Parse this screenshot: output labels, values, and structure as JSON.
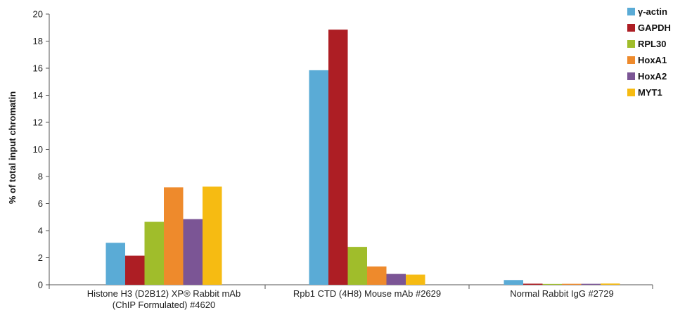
{
  "chart_data": {
    "type": "bar",
    "title": "",
    "xlabel": "",
    "ylabel": "% of total input chromatin",
    "ylim": [
      0,
      20
    ],
    "yticks": [
      0,
      2,
      4,
      6,
      8,
      10,
      12,
      14,
      16,
      18,
      20
    ],
    "grid": false,
    "legend_position": "top-right",
    "categories": [
      [
        "Histone H3 (D2B12) XP® Rabbit mAb",
        "(ChIP Formulated) #4620"
      ],
      [
        "Rpb1 CTD (4H8) Mouse mAb #2629"
      ],
      [
        "Normal Rabbit IgG #2729"
      ]
    ],
    "series": [
      {
        "name": "γ-actin",
        "color": "#5aabd6",
        "values": [
          3.1,
          15.85,
          0.35
        ]
      },
      {
        "name": "GAPDH",
        "color": "#ad1e24",
        "values": [
          2.15,
          18.85,
          0.08
        ]
      },
      {
        "name": "RPL30",
        "color": "#a0bd2b",
        "values": [
          4.65,
          2.8,
          0.06
        ]
      },
      {
        "name": "HoxA1",
        "color": "#ee8a2c",
        "values": [
          7.2,
          1.35,
          0.07
        ]
      },
      {
        "name": "HoxA2",
        "color": "#7b5595",
        "values": [
          4.85,
          0.8,
          0.07
        ]
      },
      {
        "name": "MYT1",
        "color": "#f6bb12",
        "values": [
          7.25,
          0.75,
          0.09
        ]
      }
    ]
  }
}
